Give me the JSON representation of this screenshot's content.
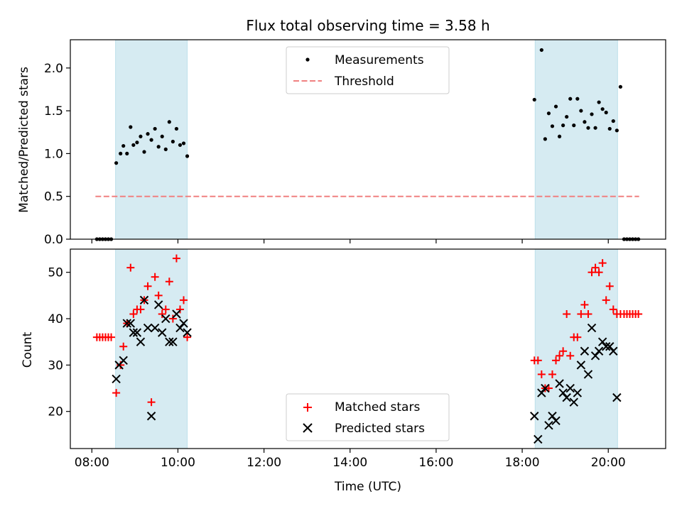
{
  "figure": {
    "title": "Flux total observing time = 3.58 h",
    "shade_color": "#add8e6"
  },
  "chart_data": [
    {
      "type": "scatter",
      "id": "ratio",
      "title": "Flux total observing time = 3.58 h",
      "xlabel": "",
      "ylabel": "Matched/Predicted stars",
      "xlim": [
        "07:30",
        "21:20"
      ],
      "ylim": [
        0,
        2.33
      ],
      "yticks": [
        0.0,
        0.5,
        1.0,
        1.5,
        2.0
      ],
      "ytick_labels": [
        "0.0",
        "0.5",
        "1.0",
        "1.5",
        "2.0"
      ],
      "grid": false,
      "legend": "upper center",
      "shaded_intervals": [
        [
          "08:33",
          "10:13"
        ],
        [
          "18:18",
          "20:13"
        ]
      ],
      "series": [
        {
          "name": "Measurements",
          "kind": "points",
          "color": "#000000",
          "points": [
            [
              "08:07",
              0
            ],
            [
              "08:11",
              0
            ],
            [
              "08:15",
              0
            ],
            [
              "08:19",
              0
            ],
            [
              "08:23",
              0
            ],
            [
              "08:27",
              0
            ],
            [
              "08:34",
              0.89
            ],
            [
              "08:40",
              1.0
            ],
            [
              "08:44",
              1.09
            ],
            [
              "08:49",
              1.0
            ],
            [
              "08:54",
              1.31
            ],
            [
              "08:58",
              1.1
            ],
            [
              "09:03",
              1.13
            ],
            [
              "09:08",
              1.2
            ],
            [
              "09:13",
              1.02
            ],
            [
              "09:18",
              1.23
            ],
            [
              "09:23",
              1.16
            ],
            [
              "09:28",
              1.29
            ],
            [
              "09:33",
              1.08
            ],
            [
              "09:38",
              1.2
            ],
            [
              "09:43",
              1.05
            ],
            [
              "09:48",
              1.37
            ],
            [
              "09:53",
              1.14
            ],
            [
              "09:58",
              1.29
            ],
            [
              "10:03",
              1.1
            ],
            [
              "10:08",
              1.12
            ],
            [
              "10:13",
              0.97
            ],
            [
              "18:17",
              1.63
            ],
            [
              "18:27",
              2.21
            ],
            [
              "18:32",
              1.17
            ],
            [
              "18:37",
              1.47
            ],
            [
              "18:42",
              1.32
            ],
            [
              "18:47",
              1.55
            ],
            [
              "18:52",
              1.2
            ],
            [
              "18:57",
              1.33
            ],
            [
              "19:02",
              1.43
            ],
            [
              "19:07",
              1.64
            ],
            [
              "19:12",
              1.33
            ],
            [
              "19:17",
              1.64
            ],
            [
              "19:22",
              1.5
            ],
            [
              "19:27",
              1.37
            ],
            [
              "19:32",
              1.3
            ],
            [
              "19:37",
              1.46
            ],
            [
              "19:42",
              1.3
            ],
            [
              "19:47",
              1.6
            ],
            [
              "19:52",
              1.52
            ],
            [
              "19:57",
              1.48
            ],
            [
              "20:02",
              1.29
            ],
            [
              "20:07",
              1.38
            ],
            [
              "20:12",
              1.27
            ],
            [
              "20:17",
              1.78
            ],
            [
              "20:22",
              0
            ],
            [
              "20:26",
              0
            ],
            [
              "20:30",
              0
            ],
            [
              "20:34",
              0
            ],
            [
              "20:38",
              0
            ],
            [
              "20:42",
              0
            ]
          ]
        },
        {
          "name": "Threshold",
          "kind": "dashed-line",
          "color": "#f08080",
          "points": [
            [
              "08:05",
              0.5
            ],
            [
              "20:43",
              0.5
            ]
          ]
        }
      ]
    },
    {
      "type": "scatter",
      "id": "counts",
      "xlabel": "Time (UTC)",
      "ylabel": "Count",
      "xlim": [
        "07:30",
        "21:20"
      ],
      "ylim": [
        12,
        55
      ],
      "xticks": [
        "08:00",
        "10:00",
        "12:00",
        "14:00",
        "16:00",
        "18:00",
        "20:00"
      ],
      "yticks": [
        20,
        30,
        40,
        50
      ],
      "ytick_labels": [
        "20",
        "30",
        "40",
        "50"
      ],
      "grid": false,
      "legend": "lower center",
      "shaded_intervals": [
        [
          "08:33",
          "10:13"
        ],
        [
          "18:18",
          "20:13"
        ]
      ],
      "series": [
        {
          "name": "Matched stars",
          "kind": "plus",
          "color": "#ff0000",
          "points": [
            [
              "08:07",
              36
            ],
            [
              "08:11",
              36
            ],
            [
              "08:15",
              36
            ],
            [
              "08:19",
              36
            ],
            [
              "08:23",
              36
            ],
            [
              "08:27",
              36
            ],
            [
              "08:34",
              24
            ],
            [
              "08:40",
              30
            ],
            [
              "08:44",
              34
            ],
            [
              "08:49",
              39
            ],
            [
              "08:54",
              51
            ],
            [
              "08:58",
              41
            ],
            [
              "09:03",
              42
            ],
            [
              "09:08",
              42
            ],
            [
              "09:13",
              44
            ],
            [
              "09:18",
              47
            ],
            [
              "09:23",
              22
            ],
            [
              "09:28",
              49
            ],
            [
              "09:33",
              45
            ],
            [
              "09:38",
              41
            ],
            [
              "09:43",
              42
            ],
            [
              "09:48",
              48
            ],
            [
              "09:53",
              40
            ],
            [
              "09:58",
              53
            ],
            [
              "10:03",
              42
            ],
            [
              "10:08",
              44
            ],
            [
              "10:13",
              36
            ],
            [
              "18:17",
              31
            ],
            [
              "18:22",
              31
            ],
            [
              "18:27",
              28
            ],
            [
              "18:32",
              25
            ],
            [
              "18:37",
              25
            ],
            [
              "18:42",
              28
            ],
            [
              "18:47",
              31
            ],
            [
              "18:52",
              32
            ],
            [
              "18:57",
              33
            ],
            [
              "19:02",
              41
            ],
            [
              "19:07",
              32
            ],
            [
              "19:12",
              36
            ],
            [
              "19:17",
              36
            ],
            [
              "19:22",
              41
            ],
            [
              "19:27",
              43
            ],
            [
              "19:32",
              41
            ],
            [
              "19:37",
              50
            ],
            [
              "19:42",
              51
            ],
            [
              "19:47",
              50
            ],
            [
              "19:52",
              52
            ],
            [
              "19:57",
              44
            ],
            [
              "20:02",
              47
            ],
            [
              "20:07",
              42
            ],
            [
              "20:12",
              41
            ],
            [
              "20:17",
              41
            ],
            [
              "20:22",
              41
            ],
            [
              "20:26",
              41
            ],
            [
              "20:30",
              41
            ],
            [
              "20:34",
              41
            ],
            [
              "20:38",
              41
            ],
            [
              "20:42",
              41
            ]
          ]
        },
        {
          "name": "Predicted stars",
          "kind": "x",
          "color": "#000000",
          "points": [
            [
              "08:34",
              27
            ],
            [
              "08:38",
              30
            ],
            [
              "08:44",
              31
            ],
            [
              "08:49",
              39
            ],
            [
              "08:54",
              39
            ],
            [
              "08:58",
              37
            ],
            [
              "09:03",
              37
            ],
            [
              "09:08",
              35
            ],
            [
              "09:13",
              44
            ],
            [
              "09:18",
              38
            ],
            [
              "09:23",
              19
            ],
            [
              "09:28",
              38
            ],
            [
              "09:33",
              43
            ],
            [
              "09:38",
              37
            ],
            [
              "09:43",
              40
            ],
            [
              "09:48",
              35
            ],
            [
              "09:53",
              35
            ],
            [
              "09:58",
              41
            ],
            [
              "10:03",
              38
            ],
            [
              "10:08",
              39
            ],
            [
              "10:13",
              37
            ],
            [
              "18:17",
              19
            ],
            [
              "18:22",
              14
            ],
            [
              "18:27",
              24
            ],
            [
              "18:32",
              25
            ],
            [
              "18:37",
              17
            ],
            [
              "18:42",
              19
            ],
            [
              "18:47",
              18
            ],
            [
              "18:52",
              26
            ],
            [
              "18:57",
              24
            ],
            [
              "19:02",
              23
            ],
            [
              "19:07",
              25
            ],
            [
              "19:12",
              22
            ],
            [
              "19:17",
              24
            ],
            [
              "19:22",
              30
            ],
            [
              "19:27",
              33
            ],
            [
              "19:32",
              28
            ],
            [
              "19:37",
              38
            ],
            [
              "19:42",
              32
            ],
            [
              "19:47",
              33
            ],
            [
              "19:52",
              35
            ],
            [
              "19:57",
              34
            ],
            [
              "20:02",
              34
            ],
            [
              "20:07",
              33
            ],
            [
              "20:12",
              23
            ]
          ]
        }
      ]
    }
  ]
}
